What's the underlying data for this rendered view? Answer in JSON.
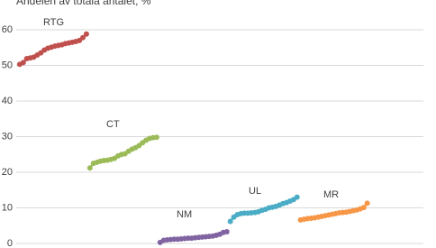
{
  "chart_data": {
    "type": "line",
    "title": "Andelen av totala antalet, %",
    "xlim": [
      0,
      116
    ],
    "ylim": [
      0,
      60
    ],
    "yticks": [
      0,
      10,
      20,
      30,
      40,
      50,
      60
    ],
    "grid": true,
    "series": [
      {
        "name": "RTG",
        "color": "#c0504d",
        "x": [
          1,
          2,
          3,
          4,
          5,
          6,
          7,
          8,
          9,
          10,
          11,
          12,
          13,
          14,
          15,
          16,
          17,
          18,
          19,
          20
        ],
        "values": [
          50.3,
          50.8,
          51.9,
          52.1,
          52.3,
          52.9,
          53.5,
          54.3,
          54.8,
          55.1,
          55.4,
          55.6,
          55.8,
          56.1,
          56.3,
          56.5,
          56.7,
          57.0,
          57.8,
          58.8
        ]
      },
      {
        "name": "CT",
        "color": "#9bbb59",
        "x": [
          21,
          22,
          23,
          24,
          25,
          26,
          27,
          28,
          29,
          30,
          31,
          32,
          33,
          34,
          35,
          36,
          37,
          38,
          39,
          40
        ],
        "values": [
          21.2,
          22.5,
          22.8,
          23.1,
          23.3,
          23.4,
          23.6,
          23.9,
          24.6,
          25.0,
          25.2,
          25.9,
          26.5,
          26.9,
          27.5,
          28.3,
          29.0,
          29.5,
          29.7,
          29.8
        ]
      },
      {
        "name": "NM",
        "color": "#8064a2",
        "x": [
          41,
          42,
          43,
          44,
          45,
          46,
          47,
          48,
          49,
          50,
          51,
          52,
          53,
          54,
          55,
          56,
          57,
          58,
          59,
          60
        ],
        "values": [
          0.3,
          0.9,
          1.0,
          1.1,
          1.2,
          1.2,
          1.3,
          1.4,
          1.5,
          1.5,
          1.6,
          1.7,
          1.8,
          1.9,
          2.0,
          2.1,
          2.3,
          2.6,
          3.1,
          3.3
        ]
      },
      {
        "name": "UL",
        "color": "#4bacc6",
        "x": [
          61,
          62,
          63,
          64,
          65,
          66,
          67,
          68,
          69,
          70,
          71,
          72,
          73,
          74,
          75,
          76,
          77,
          78,
          79,
          80
        ],
        "values": [
          6.2,
          7.4,
          8.1,
          8.4,
          8.5,
          8.5,
          8.6,
          8.7,
          8.9,
          9.3,
          9.6,
          10.0,
          10.2,
          10.4,
          10.8,
          11.2,
          11.5,
          11.9,
          12.3,
          13.0
        ]
      },
      {
        "name": "MR",
        "color": "#f79646",
        "x": [
          81,
          82,
          83,
          84,
          85,
          86,
          87,
          88,
          89,
          90,
          91,
          92,
          93,
          94,
          95,
          96,
          97,
          98,
          99,
          100
        ],
        "values": [
          6.6,
          6.8,
          7.0,
          7.1,
          7.2,
          7.4,
          7.6,
          7.8,
          8.0,
          8.2,
          8.4,
          8.6,
          8.7,
          8.8,
          9.0,
          9.2,
          9.4,
          9.7,
          10.1,
          11.3
        ]
      }
    ]
  }
}
